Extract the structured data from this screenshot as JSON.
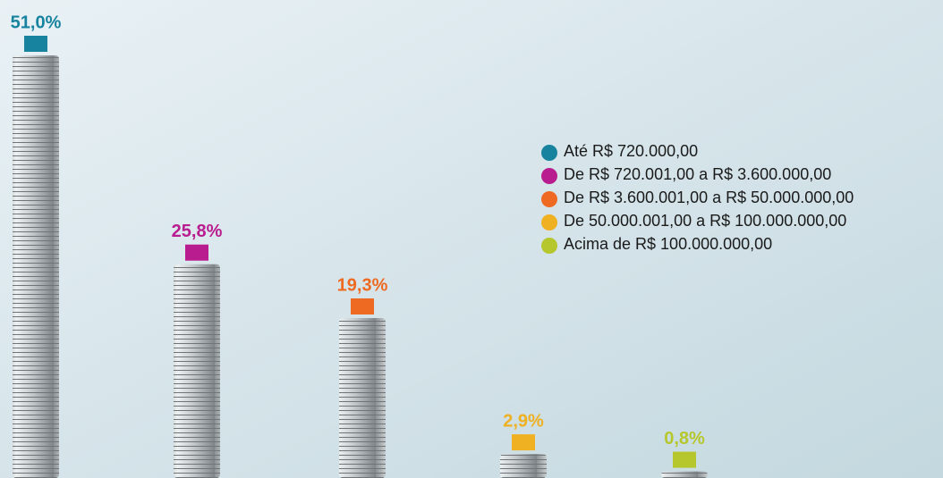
{
  "chart_data": {
    "type": "bar",
    "categories": [
      "Até R$ 720.000,00",
      "De R$ 720.001,00 a R$ 3.600.000,00",
      "De R$ 3.600.001,00 a R$ 50.000.000,00",
      "De 50.000.001,00 a R$ 100.000.000,00",
      "Acima de R$ 100.000.000,00"
    ],
    "values": [
      51.0,
      25.8,
      19.3,
      2.9,
      0.8
    ],
    "value_labels": [
      "51,0%",
      "25,8%",
      "19,3%",
      "2,9%",
      "0,8%"
    ],
    "colors": [
      "#17839f",
      "#b81c8e",
      "#ee6a22",
      "#efb021",
      "#b6c72e"
    ]
  }
}
